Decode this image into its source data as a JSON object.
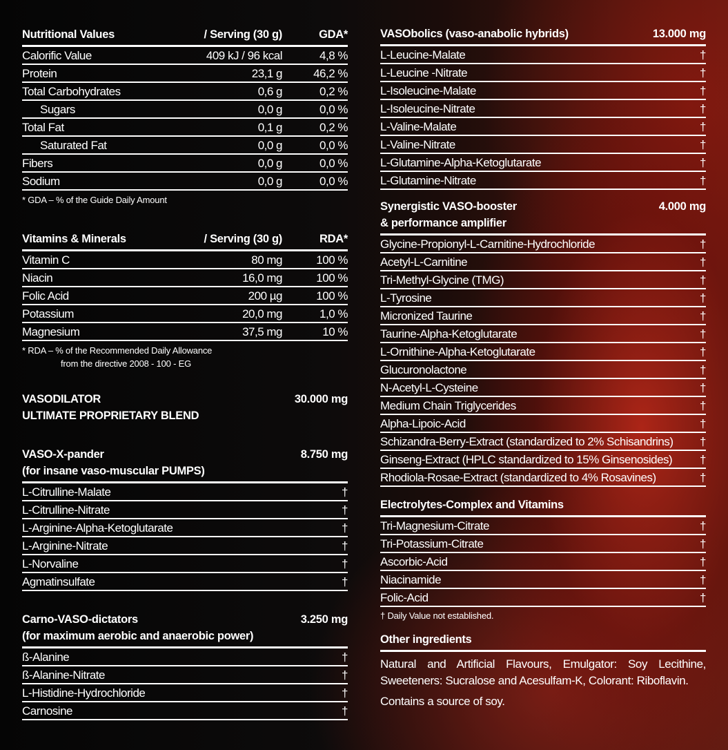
{
  "nutrition": {
    "headers": [
      "Nutritional Values",
      "/ Serving (30 g)",
      "GDA*"
    ],
    "rows": [
      {
        "name": "Calorific Value",
        "value": "409 kJ / 96 kcal",
        "pct": "4,8 %"
      },
      {
        "name": "Protein",
        "value": "23,1 g",
        "pct": "46,2 %"
      },
      {
        "name": "Total Carbohydrates",
        "value": "0,6 g",
        "pct": "0,2 %"
      },
      {
        "name": "Sugars",
        "value": "0,0 g",
        "pct": "0,0 %",
        "indent": true
      },
      {
        "name": "Total Fat",
        "value": "0,1 g",
        "pct": "0,2 %"
      },
      {
        "name": "Saturated Fat",
        "value": "0,0 g",
        "pct": "0,0 %",
        "indent": true
      },
      {
        "name": "Fibers",
        "value": "0,0 g",
        "pct": "0,0 %"
      },
      {
        "name": "Sodium",
        "value": "0,0 g",
        "pct": "0,0 %"
      }
    ],
    "footnote": [
      "* GDA – % of the Guide Daily Amount"
    ]
  },
  "vitamins": {
    "headers": [
      "Vitamins & Minerals",
      "/ Serving (30 g)",
      "RDA*"
    ],
    "rows": [
      {
        "name": "Vitamin C",
        "value": "80 mg",
        "pct": "100 %"
      },
      {
        "name": "Niacin",
        "value": "16,0 mg",
        "pct": "100 %"
      },
      {
        "name": "Folic Acid",
        "value": "200 µg",
        "pct": "100 %"
      },
      {
        "name": "Potassium",
        "value": "20,0 mg",
        "pct": "1,0 %"
      },
      {
        "name": "Magnesium",
        "value": "37,5 mg",
        "pct": "10 %"
      }
    ],
    "footnote": [
      "* RDA – % of the Recommended Daily Allowance",
      "from the directive 2008 - 100 - EG"
    ]
  },
  "blend": {
    "title": [
      "VASODILATOR",
      "ULTIMATE PROPRIETARY BLEND"
    ],
    "amount": "30.000 mg"
  },
  "dagger": "†",
  "vaso_x_pander": {
    "title": [
      "VASO-X-pander",
      "(for insane vaso-muscular PUMPS)"
    ],
    "amount": "8.750 mg",
    "items": [
      "L-Citrulline-Malate",
      "L-Citrulline-Nitrate",
      "L-Arginine-Alpha-Ketoglutarate",
      "L-Arginine-Nitrate",
      "L-Norvaline",
      "Agmatinsulfate"
    ]
  },
  "carno": {
    "title": [
      "Carno-VASO-dictators",
      "(for maximum aerobic and anaerobic power)"
    ],
    "amount": "3.250 mg",
    "items": [
      "ß-Alanine",
      "ß-Alanine-Nitrate",
      "L-Histidine-Hydrochloride",
      "Carnosine"
    ]
  },
  "vasobolics": {
    "title": [
      "VASObolics (vaso-anabolic hybrids)"
    ],
    "amount": "13.000 mg",
    "items": [
      "L-Leucine-Malate",
      "L-Leucine -Nitrate",
      "L-Isoleucine-Malate",
      "L-Isoleucine-Nitrate",
      "L-Valine-Malate",
      "L-Valine-Nitrate",
      "L-Glutamine-Alpha-Ketoglutarate",
      "L-Glutamine-Nitrate"
    ]
  },
  "synergistic": {
    "title": [
      "Synergistic VASO-booster",
      "& performance amplifier"
    ],
    "amount": "4.000 mg",
    "items": [
      "Glycine-Propionyl-L-Carnitine-Hydrochloride",
      "Acetyl-L-Carnitine",
      "Tri-Methyl-Glycine (TMG)",
      "L-Tyrosine",
      "Micronized Taurine",
      "Taurine-Alpha-Ketoglutarate",
      "L-Ornithine-Alpha-Ketoglutarate",
      "Glucuronolactone",
      "N-Acetyl-L-Cysteine",
      "Medium Chain Triglycerides",
      "Alpha-Lipoic-Acid",
      "Schizandra-Berry-Extract (standardized to 2% Schisandrins)",
      "Ginseng-Extract (HPLC standardized to 15% Ginsenosides)",
      "Rhodiola-Rosae-Extract (standardized to 4% Rosavines)"
    ]
  },
  "electrolytes": {
    "title": [
      "Electrolytes-Complex and Vitamins"
    ],
    "amount": "",
    "items": [
      "Tri-Magnesium-Citrate",
      "Tri-Potassium-Citrate",
      "Ascorbic-Acid",
      "Niacinamide",
      "Folic-Acid"
    ],
    "footnote": [
      "† Daily Value not established."
    ]
  },
  "other": {
    "title": "Other ingredients",
    "paragraphs": [
      "Natural and Artificial Flavours, Emulgator: Soy Lecithine, Sweeteners: Sucralose and Acesulfam-K, Colorant: Ribo­flavin.",
      "Contains a source of soy."
    ]
  }
}
